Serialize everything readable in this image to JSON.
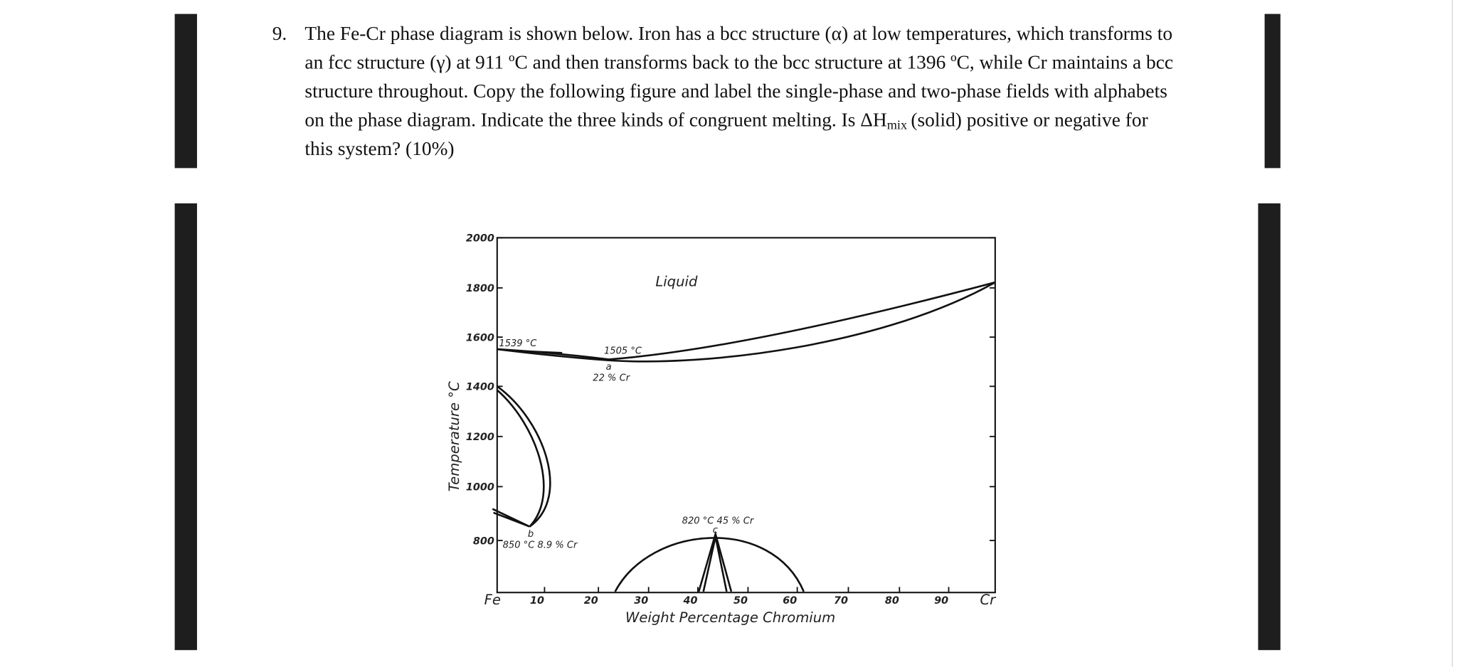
{
  "question": {
    "number": "9.",
    "line_1": "The Fe-Cr phase diagram is shown below. Iron has a bcc structure (α) at low temperatures, which transforms to",
    "line_2": "an fcc structure (γ) at 911 ºC and then transforms back to the bcc structure at 1396 ºC, while Cr maintains a bcc",
    "line_3": "structure throughout. Copy the following figure and label the single-phase and two-phase fields with alphabets",
    "line_4_start": "on the phase diagram. Indicate the three kinds of congruent melting. Is ΔH",
    "line_4_subscript": "mix",
    "line_4_end": "(solid) positive or negative for",
    "line_5": "this system? (10%)"
  },
  "figure": {
    "y_axis_label": "Temperature °C",
    "y_tick_labels": [
      "2000",
      "1800",
      "1600",
      "1400",
      "1200",
      "1000",
      "800"
    ],
    "x_tick_labels": [
      "Fe",
      "10",
      "20",
      "30",
      "40",
      "50",
      "60",
      "70",
      "80",
      "90",
      "Cr"
    ],
    "x_axis_label": "Weight Percentage Chromium",
    "annotations": {
      "liquid": "Liquid",
      "fe_melting": "1539 °C",
      "minimum_temp": "1505 °C",
      "point_a": "a",
      "minimum_comp": "22 % Cr",
      "sigma": "820 °C  45 % Cr",
      "point_c": "c",
      "point_b": "b",
      "gamma_loop": "850 °C  8.9 % Cr"
    }
  }
}
